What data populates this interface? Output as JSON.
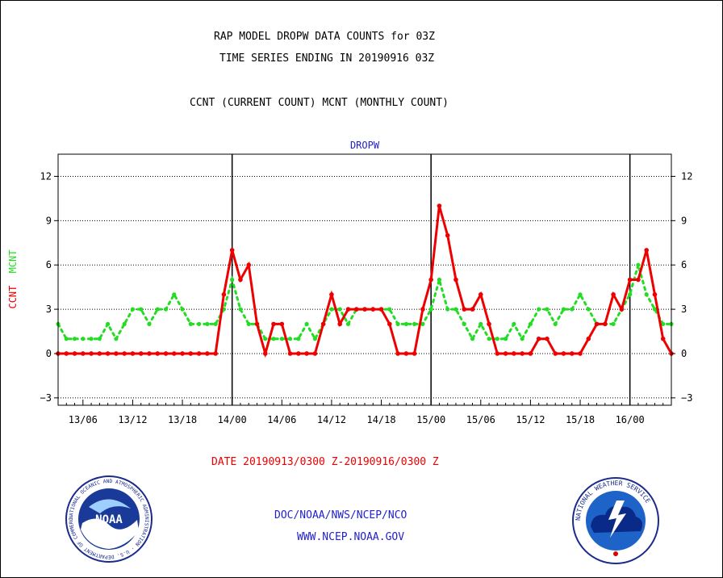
{
  "header": {
    "title_line1": "RAP MODEL DROPW DATA COUNTS for 03Z",
    "title_line2": "TIME SERIES ENDING IN 20190916 03Z",
    "subtitle": "CCNT (CURRENT COUNT) MCNT (MONTHLY COUNT)"
  },
  "footer": {
    "date_range": "DATE 20190913/0300 Z-20190916/0300 Z",
    "org": "DOC/NOAA/NWS/NCEP/NCO",
    "url": "WWW.NCEP.NOAA.GOV"
  },
  "logos": {
    "noaa": {
      "label": "NOAA",
      "ring_text": "NATIONAL OCEANIC AND ATMOSPHERIC ADMINISTRATION · U.S. DEPARTMENT OF COMMERCE"
    },
    "nws": {
      "ring_text": "NATIONAL WEATHER SERVICE"
    }
  },
  "colors": {
    "ccnt": "#ee0000",
    "mcnt": "#22dd22",
    "axis_label_top": "#2222cc",
    "background": "#ffffff",
    "axes": "#000000"
  },
  "chart_data": {
    "type": "line",
    "title": "DROPW",
    "ylabel_parts": [
      "CCNT",
      "MCNT"
    ],
    "ylim": [
      -3.5,
      13.5
    ],
    "yticks": [
      -3,
      0,
      3,
      6,
      9,
      12
    ],
    "grid": "dotted horizontal at y ticks",
    "x_start": "2019-09-13 03Z",
    "x_step_hours": 1,
    "xticks": [
      {
        "index": 3,
        "label": "13/06"
      },
      {
        "index": 9,
        "label": "13/12"
      },
      {
        "index": 15,
        "label": "13/18"
      },
      {
        "index": 21,
        "label": "14/00"
      },
      {
        "index": 27,
        "label": "14/06"
      },
      {
        "index": 33,
        "label": "14/12"
      },
      {
        "index": 39,
        "label": "14/18"
      },
      {
        "index": 45,
        "label": "15/00"
      },
      {
        "index": 51,
        "label": "15/06"
      },
      {
        "index": 57,
        "label": "15/12"
      },
      {
        "index": 63,
        "label": "15/18"
      },
      {
        "index": 69,
        "label": "16/00"
      }
    ],
    "day_lines": [
      21,
      45,
      69
    ],
    "series": [
      {
        "name": "CCNT",
        "color": "#ee0000",
        "style": "solid",
        "values": [
          0,
          0,
          0,
          0,
          0,
          0,
          0,
          0,
          0,
          0,
          0,
          0,
          0,
          0,
          0,
          0,
          0,
          0,
          0,
          0,
          4,
          7,
          5,
          6,
          2,
          0,
          2,
          2,
          0,
          0,
          0,
          0,
          2,
          4,
          2,
          3,
          3,
          3,
          3,
          3,
          2,
          0,
          0,
          0,
          3,
          5,
          10,
          8,
          5,
          3,
          3,
          4,
          2,
          0,
          0,
          0,
          0,
          0,
          1,
          1,
          0,
          0,
          0,
          0,
          1,
          2,
          2,
          4,
          3,
          5,
          5,
          7,
          4,
          1,
          0
        ]
      },
      {
        "name": "MCNT",
        "color": "#22dd22",
        "style": "dotted",
        "values": [
          2,
          1,
          1,
          1,
          1,
          1,
          2,
          1,
          2,
          3,
          3,
          2,
          3,
          3,
          4,
          3,
          2,
          2,
          2,
          2,
          3,
          5,
          3,
          2,
          2,
          1,
          1,
          1,
          1,
          1,
          2,
          1,
          2,
          3,
          3,
          2,
          3,
          3,
          3,
          3,
          3,
          2,
          2,
          2,
          2,
          3,
          5,
          3,
          3,
          2,
          1,
          2,
          1,
          1,
          1,
          2,
          1,
          2,
          3,
          3,
          2,
          3,
          3,
          4,
          3,
          2,
          2,
          2,
          3,
          4,
          6,
          4,
          3,
          2,
          2
        ]
      }
    ]
  }
}
